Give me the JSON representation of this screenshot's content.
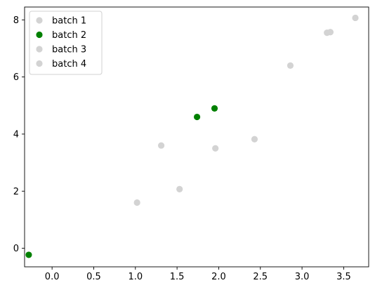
{
  "chart_data": {
    "type": "scatter",
    "title": "",
    "xlabel": "",
    "ylabel": "",
    "xlim": [
      -0.33,
      3.8
    ],
    "ylim": [
      -0.65,
      8.45
    ],
    "xticks": [
      0.0,
      0.5,
      1.0,
      1.5,
      2.0,
      2.5,
      3.0,
      3.5
    ],
    "xtick_labels": [
      "0.0",
      "0.5",
      "1.0",
      "1.5",
      "2.0",
      "2.5",
      "3.0",
      "3.5"
    ],
    "yticks": [
      0,
      2,
      4,
      6,
      8
    ],
    "ytick_labels": [
      "0",
      "2",
      "4",
      "6",
      "8"
    ],
    "grid": false,
    "legend_position": "top-left",
    "series": [
      {
        "name": "batch 1",
        "color": "#d3d3d3",
        "points": [
          [
            1.02,
            1.6
          ],
          [
            1.31,
            3.6
          ],
          [
            1.96,
            3.5
          ],
          [
            3.34,
            7.57
          ]
        ]
      },
      {
        "name": "batch 2",
        "color": "#008000",
        "points": [
          [
            -0.28,
            -0.23
          ],
          [
            1.74,
            4.6
          ],
          [
            1.95,
            4.9
          ]
        ]
      },
      {
        "name": "batch 3",
        "color": "#d3d3d3",
        "points": [
          [
            1.53,
            2.07
          ],
          [
            2.43,
            3.82
          ],
          [
            3.3,
            7.55
          ]
        ]
      },
      {
        "name": "batch 4",
        "color": "#d3d3d3",
        "points": [
          [
            2.86,
            6.4
          ],
          [
            3.64,
            8.07
          ]
        ]
      }
    ]
  }
}
